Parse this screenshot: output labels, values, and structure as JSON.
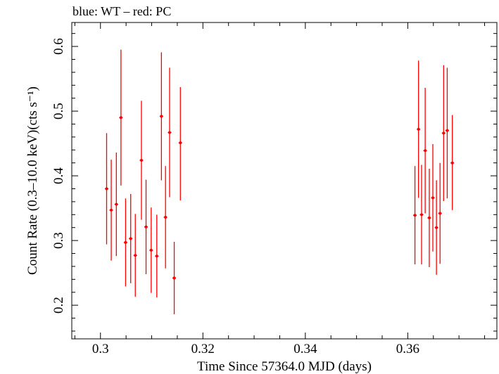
{
  "chart_data": {
    "type": "scatter",
    "title": "blue: WT – red: PC",
    "xlabel": "Time Since 57364.0 MJD (days)",
    "ylabel": "Count Rate (0.3–10.0 keV)(cts s⁻¹)",
    "xlim": [
      0.2944,
      0.3774
    ],
    "ylim": [
      0.148,
      0.637
    ],
    "xticks": [
      0.3,
      0.32,
      0.34,
      0.36
    ],
    "xtick_labels": [
      "0.3",
      "0.32",
      "0.34",
      "0.36"
    ],
    "yticks": [
      0.2,
      0.3,
      0.4,
      0.5,
      0.6
    ],
    "ytick_labels": [
      "0.2",
      "0.3",
      "0.4",
      "0.5",
      "0.6"
    ],
    "grid": false,
    "legend": "none",
    "series": [
      {
        "color": "#ff0000",
        "points": [
          {
            "x": 0.3012,
            "xerr": 0.00035,
            "y": 0.38,
            "ylo": 0.294,
            "yhi": 0.466
          },
          {
            "x": 0.3021,
            "xerr": 0.00035,
            "y": 0.347,
            "ylo": 0.269,
            "yhi": 0.425
          },
          {
            "x": 0.3031,
            "xerr": 0.00035,
            "y": 0.356,
            "ylo": 0.276,
            "yhi": 0.436
          },
          {
            "x": 0.304,
            "xerr": 0.00035,
            "y": 0.49,
            "ylo": 0.385,
            "yhi": 0.595
          },
          {
            "x": 0.3049,
            "xerr": 0.00035,
            "y": 0.297,
            "ylo": 0.229,
            "yhi": 0.365
          },
          {
            "x": 0.3059,
            "xerr": 0.00035,
            "y": 0.303,
            "ylo": 0.234,
            "yhi": 0.372
          },
          {
            "x": 0.3068,
            "xerr": 0.00035,
            "y": 0.277,
            "ylo": 0.213,
            "yhi": 0.341
          },
          {
            "x": 0.308,
            "xerr": 0.00035,
            "y": 0.424,
            "ylo": 0.332,
            "yhi": 0.516
          },
          {
            "x": 0.3089,
            "xerr": 0.00035,
            "y": 0.321,
            "ylo": 0.248,
            "yhi": 0.394
          },
          {
            "x": 0.3099,
            "xerr": 0.00035,
            "y": 0.285,
            "ylo": 0.219,
            "yhi": 0.351
          },
          {
            "x": 0.311,
            "xerr": 0.00035,
            "y": 0.276,
            "ylo": 0.212,
            "yhi": 0.34
          },
          {
            "x": 0.3119,
            "xerr": 0.00035,
            "y": 0.492,
            "ylo": 0.393,
            "yhi": 0.591
          },
          {
            "x": 0.3127,
            "xerr": 0.00035,
            "y": 0.336,
            "ylo": 0.257,
            "yhi": 0.415
          },
          {
            "x": 0.3135,
            "xerr": 0.00035,
            "y": 0.467,
            "ylo": 0.367,
            "yhi": 0.567
          },
          {
            "x": 0.3144,
            "xerr": 0.00035,
            "y": 0.242,
            "ylo": 0.186,
            "yhi": 0.298
          },
          {
            "x": 0.3156,
            "xerr": 0.00035,
            "y": 0.451,
            "ylo": 0.362,
            "yhi": 0.537
          },
          {
            "x": 0.3614,
            "xerr": 0.00035,
            "y": 0.339,
            "ylo": 0.263,
            "yhi": 0.415
          },
          {
            "x": 0.3621,
            "xerr": 0.00035,
            "y": 0.472,
            "ylo": 0.366,
            "yhi": 0.578
          },
          {
            "x": 0.3627,
            "xerr": 0.00035,
            "y": 0.34,
            "ylo": 0.263,
            "yhi": 0.417
          },
          {
            "x": 0.3634,
            "xerr": 0.00035,
            "y": 0.439,
            "ylo": 0.342,
            "yhi": 0.536
          },
          {
            "x": 0.3642,
            "xerr": 0.00035,
            "y": 0.335,
            "ylo": 0.259,
            "yhi": 0.411
          },
          {
            "x": 0.3649,
            "xerr": 0.00035,
            "y": 0.366,
            "ylo": 0.283,
            "yhi": 0.449
          },
          {
            "x": 0.3656,
            "xerr": 0.00035,
            "y": 0.32,
            "ylo": 0.247,
            "yhi": 0.393
          },
          {
            "x": 0.3663,
            "xerr": 0.00035,
            "y": 0.342,
            "ylo": 0.264,
            "yhi": 0.42
          },
          {
            "x": 0.367,
            "xerr": 0.00035,
            "y": 0.466,
            "ylo": 0.361,
            "yhi": 0.571
          },
          {
            "x": 0.3677,
            "xerr": 0.00035,
            "y": 0.47,
            "ylo": 0.365,
            "yhi": 0.567
          },
          {
            "x": 0.3687,
            "xerr": 0.00035,
            "y": 0.42,
            "ylo": 0.347,
            "yhi": 0.494
          }
        ]
      }
    ]
  }
}
